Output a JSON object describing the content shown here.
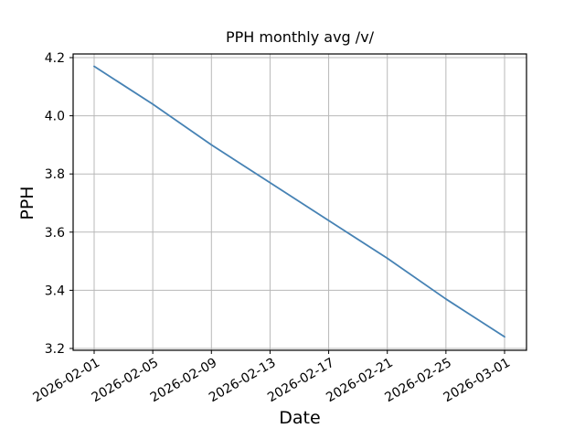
{
  "chart_data": {
    "type": "line",
    "title": "PPH monthly avg /v/",
    "xlabel": "Date",
    "ylabel": "PPH",
    "x": [
      "2026-02-01",
      "2026-02-05",
      "2026-02-09",
      "2026-02-13",
      "2026-02-17",
      "2026-02-21",
      "2026-02-25",
      "2026-03-01"
    ],
    "series": [
      {
        "name": "PPH monthly avg",
        "values": [
          4.17,
          4.04,
          3.9,
          3.77,
          3.64,
          3.51,
          3.37,
          3.24
        ]
      }
    ],
    "yticks": [
      3.2,
      3.4,
      3.6,
      3.8,
      4.0,
      4.2
    ],
    "ytick_labels": [
      "3.2",
      "3.4",
      "3.6",
      "3.8",
      "4.0",
      "4.2"
    ],
    "ylim": [
      3.2,
      4.2
    ],
    "x_tick_rotation_deg": 30,
    "grid": true,
    "legend": "none",
    "line_color": "#4682b4",
    "grid_color": "#b8b8b8",
    "spine_color": "#000000",
    "text_color": "#000000",
    "background_color": "#ffffff"
  }
}
